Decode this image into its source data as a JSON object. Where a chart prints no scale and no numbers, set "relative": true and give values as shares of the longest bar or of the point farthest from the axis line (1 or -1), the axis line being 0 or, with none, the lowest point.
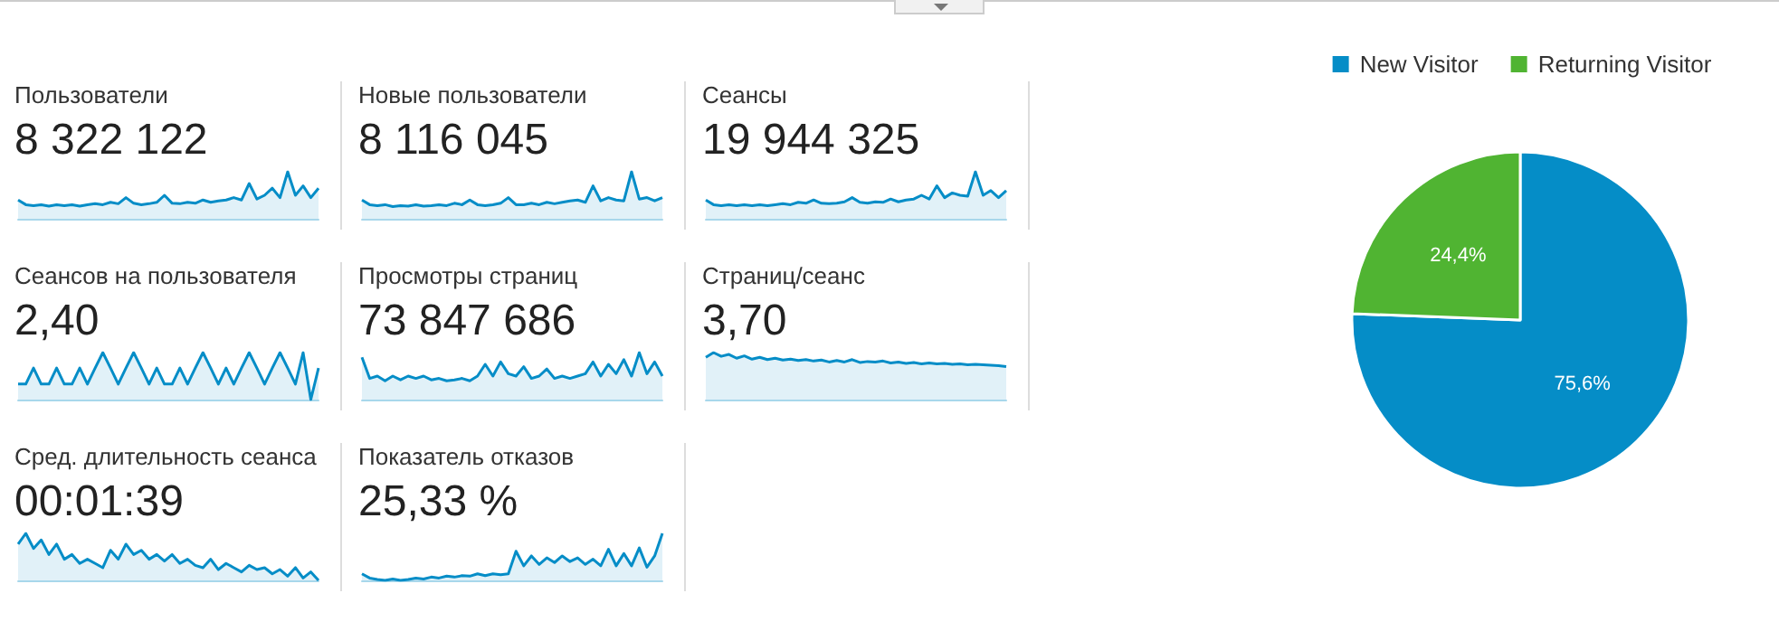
{
  "chart_data": [
    {
      "type": "area",
      "title": "Пользователи",
      "subtitle": "8 322 122",
      "relative": true,
      "color": "#058dc7",
      "categories": [
        null,
        null,
        null,
        null,
        null,
        null,
        null,
        null,
        null,
        null,
        null,
        null,
        null,
        null,
        null,
        null,
        null,
        null,
        null,
        null,
        null,
        null,
        null,
        null,
        null,
        null,
        null,
        null,
        null,
        null,
        null,
        null,
        null,
        null,
        null,
        null,
        null,
        null,
        null,
        null
      ],
      "values": [
        0.4,
        0.3,
        0.28,
        0.3,
        0.27,
        0.3,
        0.28,
        0.3,
        0.27,
        0.3,
        0.32,
        0.3,
        0.35,
        0.32,
        0.45,
        0.33,
        0.3,
        0.32,
        0.35,
        0.5,
        0.33,
        0.32,
        0.35,
        0.33,
        0.4,
        0.35,
        0.38,
        0.4,
        0.45,
        0.4,
        0.75,
        0.42,
        0.5,
        0.65,
        0.45,
        1,
        0.5,
        0.7,
        0.45,
        0.65
      ]
    },
    {
      "type": "area",
      "title": "Новые пользователи",
      "subtitle": "8 116 045",
      "relative": true,
      "color": "#058dc7",
      "categories": [
        null,
        null,
        null,
        null,
        null,
        null,
        null,
        null,
        null,
        null,
        null,
        null,
        null,
        null,
        null,
        null,
        null,
        null,
        null,
        null,
        null,
        null,
        null,
        null,
        null,
        null,
        null,
        null,
        null,
        null,
        null,
        null,
        null,
        null,
        null,
        null,
        null,
        null,
        null,
        null
      ],
      "values": [
        0.4,
        0.3,
        0.28,
        0.3,
        0.26,
        0.28,
        0.27,
        0.3,
        0.27,
        0.28,
        0.3,
        0.28,
        0.33,
        0.3,
        0.4,
        0.3,
        0.28,
        0.3,
        0.33,
        0.45,
        0.3,
        0.3,
        0.33,
        0.3,
        0.35,
        0.32,
        0.35,
        0.38,
        0.4,
        0.35,
        0.7,
        0.38,
        0.45,
        0.4,
        0.38,
        1,
        0.42,
        0.45,
        0.38,
        0.45
      ]
    },
    {
      "type": "area",
      "title": "Сеансы",
      "subtitle": "19 944 325",
      "relative": true,
      "color": "#058dc7",
      "categories": [
        null,
        null,
        null,
        null,
        null,
        null,
        null,
        null,
        null,
        null,
        null,
        null,
        null,
        null,
        null,
        null,
        null,
        null,
        null,
        null,
        null,
        null,
        null,
        null,
        null,
        null,
        null,
        null,
        null,
        null,
        null,
        null,
        null,
        null,
        null,
        null,
        null,
        null,
        null,
        null
      ],
      "values": [
        0.4,
        0.3,
        0.28,
        0.3,
        0.28,
        0.3,
        0.28,
        0.3,
        0.28,
        0.3,
        0.32,
        0.3,
        0.35,
        0.33,
        0.4,
        0.33,
        0.32,
        0.33,
        0.36,
        0.45,
        0.35,
        0.33,
        0.36,
        0.35,
        0.42,
        0.36,
        0.4,
        0.42,
        0.5,
        0.42,
        0.7,
        0.45,
        0.55,
        0.5,
        0.48,
        1,
        0.5,
        0.6,
        0.45,
        0.6
      ]
    },
    {
      "type": "area",
      "title": "Сеансов на пользователя",
      "subtitle": "2,40",
      "relative": true,
      "color": "#058dc7",
      "categories": [
        null,
        null,
        null,
        null,
        null,
        null,
        null,
        null,
        null,
        null,
        null,
        null,
        null,
        null,
        null,
        null,
        null,
        null,
        null,
        null,
        null,
        null,
        null,
        null,
        null,
        null,
        null,
        null,
        null,
        null,
        null,
        null,
        null,
        null,
        null,
        null,
        null,
        null,
        null,
        null
      ],
      "values": [
        0.33,
        0.33,
        0.67,
        0.33,
        0.33,
        0.67,
        0.33,
        0.33,
        0.67,
        0.33,
        0.67,
        1,
        0.67,
        0.33,
        0.67,
        1,
        0.67,
        0.33,
        0.67,
        0.33,
        0.33,
        0.67,
        0.33,
        0.67,
        1,
        0.67,
        0.33,
        0.67,
        0.33,
        0.67,
        1,
        0.67,
        0.33,
        0.67,
        1,
        0.67,
        0.33,
        1,
        0,
        0.67
      ]
    },
    {
      "type": "area",
      "title": "Просмотры страниц",
      "subtitle": "73 847 686",
      "relative": true,
      "color": "#058dc7",
      "categories": [
        null,
        null,
        null,
        null,
        null,
        null,
        null,
        null,
        null,
        null,
        null,
        null,
        null,
        null,
        null,
        null,
        null,
        null,
        null,
        null,
        null,
        null,
        null,
        null,
        null,
        null,
        null,
        null,
        null,
        null,
        null,
        null,
        null,
        null,
        null,
        null,
        null,
        null,
        null,
        null
      ],
      "values": [
        0.9,
        0.45,
        0.5,
        0.4,
        0.5,
        0.42,
        0.5,
        0.45,
        0.5,
        0.42,
        0.45,
        0.4,
        0.42,
        0.45,
        0.4,
        0.5,
        0.75,
        0.5,
        0.8,
        0.55,
        0.5,
        0.7,
        0.45,
        0.5,
        0.65,
        0.45,
        0.5,
        0.45,
        0.5,
        0.55,
        0.8,
        0.5,
        0.75,
        0.55,
        0.85,
        0.5,
        1,
        0.55,
        0.8,
        0.5
      ]
    },
    {
      "type": "area",
      "title": "Страниц/сеанс",
      "subtitle": "3,70",
      "relative": true,
      "color": "#058dc7",
      "categories": [
        null,
        null,
        null,
        null,
        null,
        null,
        null,
        null,
        null,
        null,
        null,
        null,
        null,
        null,
        null,
        null,
        null,
        null,
        null,
        null,
        null,
        null,
        null,
        null,
        null,
        null,
        null,
        null,
        null,
        null,
        null,
        null,
        null,
        null,
        null,
        null,
        null,
        null,
        null,
        null
      ],
      "values": [
        0.9,
        1,
        0.92,
        0.96,
        0.88,
        0.93,
        0.86,
        0.9,
        0.85,
        0.88,
        0.84,
        0.86,
        0.83,
        0.85,
        0.82,
        0.84,
        0.8,
        0.83,
        0.8,
        0.85,
        0.79,
        0.81,
        0.8,
        0.82,
        0.78,
        0.8,
        0.77,
        0.79,
        0.76,
        0.78,
        0.76,
        0.77,
        0.75,
        0.76,
        0.74,
        0.75,
        0.74,
        0.73,
        0.72,
        0.7
      ]
    },
    {
      "type": "area",
      "title": "Сред. длительность сеанса",
      "subtitle": "00:01:39",
      "relative": true,
      "color": "#058dc7",
      "categories": [
        null,
        null,
        null,
        null,
        null,
        null,
        null,
        null,
        null,
        null,
        null,
        null,
        null,
        null,
        null,
        null,
        null,
        null,
        null,
        null,
        null,
        null,
        null,
        null,
        null,
        null,
        null,
        null,
        null,
        null,
        null,
        null,
        null,
        null,
        null,
        null,
        null,
        null,
        null,
        null
      ],
      "values": [
        0.77,
        1,
        0.68,
        0.86,
        0.55,
        0.77,
        0.45,
        0.55,
        0.36,
        0.45,
        0.36,
        0.27,
        0.64,
        0.45,
        0.77,
        0.55,
        0.64,
        0.45,
        0.55,
        0.41,
        0.55,
        0.36,
        0.45,
        0.32,
        0.27,
        0.45,
        0.23,
        0.36,
        0.27,
        0.18,
        0.32,
        0.23,
        0.27,
        0.14,
        0.23,
        0.09,
        0.27,
        0.05,
        0.18,
        0
      ]
    },
    {
      "type": "area",
      "title": "Показатель отказов",
      "subtitle": "25,33 %",
      "relative": true,
      "color": "#058dc7",
      "categories": [
        null,
        null,
        null,
        null,
        null,
        null,
        null,
        null,
        null,
        null,
        null,
        null,
        null,
        null,
        null,
        null,
        null,
        null,
        null,
        null,
        null,
        null,
        null,
        null,
        null,
        null,
        null,
        null,
        null,
        null,
        null,
        null,
        null,
        null,
        null,
        null,
        null,
        null,
        null,
        null
      ],
      "values": [
        0.14,
        0.05,
        0.02,
        0,
        0.03,
        0,
        0.02,
        0.05,
        0.03,
        0.07,
        0.05,
        0.09,
        0.07,
        0.1,
        0.09,
        0.14,
        0.1,
        0.14,
        0.12,
        0.14,
        0.62,
        0.31,
        0.52,
        0.34,
        0.48,
        0.38,
        0.52,
        0.4,
        0.48,
        0.34,
        0.45,
        0.31,
        0.66,
        0.31,
        0.57,
        0.31,
        0.69,
        0.28,
        0.52,
        1
      ]
    },
    {
      "type": "pie",
      "categories": [
        "New Visitor",
        "Returning Visitor"
      ],
      "values": [
        75.6,
        24.4
      ],
      "colors": [
        "#058dc7",
        "#50b432"
      ],
      "value_labels": [
        "75,6%",
        "24,4%"
      ],
      "legend": "top"
    }
  ]
}
